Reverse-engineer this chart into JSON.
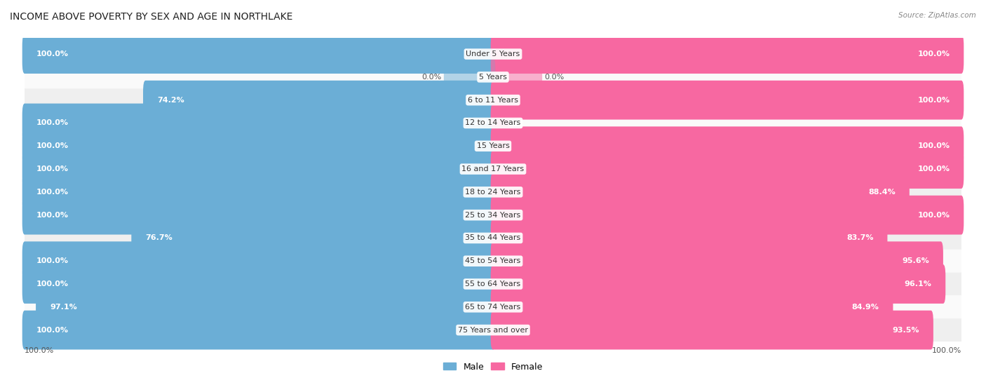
{
  "title": "INCOME ABOVE POVERTY BY SEX AND AGE IN NORTHLAKE",
  "source": "Source: ZipAtlas.com",
  "categories": [
    "Under 5 Years",
    "5 Years",
    "6 to 11 Years",
    "12 to 14 Years",
    "15 Years",
    "16 and 17 Years",
    "18 to 24 Years",
    "25 to 34 Years",
    "35 to 44 Years",
    "45 to 54 Years",
    "55 to 64 Years",
    "65 to 74 Years",
    "75 Years and over"
  ],
  "male_values": [
    100.0,
    0.0,
    74.2,
    100.0,
    100.0,
    100.0,
    100.0,
    100.0,
    76.7,
    100.0,
    100.0,
    97.1,
    100.0
  ],
  "female_values": [
    100.0,
    0.0,
    100.0,
    2.9,
    100.0,
    100.0,
    88.4,
    100.0,
    83.7,
    95.6,
    96.1,
    84.9,
    93.5
  ],
  "male_color": "#6baed6",
  "female_color": "#f768a1",
  "male_label": "Male",
  "female_label": "Female",
  "background_color": "#ffffff",
  "row_bg_color": "#f0f0f0",
  "title_fontsize": 10,
  "label_fontsize": 8,
  "value_fontsize": 8,
  "max_value": 100.0,
  "small_male_values": [
    0.0
  ],
  "small_female_values": [
    0.0
  ]
}
